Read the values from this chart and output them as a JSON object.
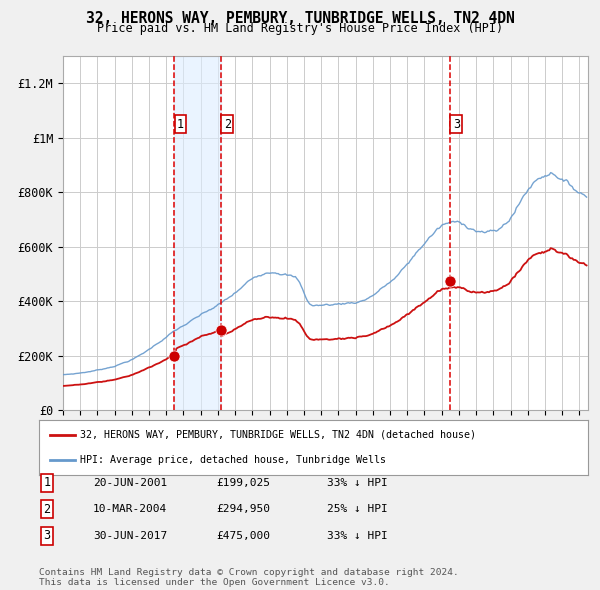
{
  "title": "32, HERONS WAY, PEMBURY, TUNBRIDGE WELLS, TN2 4DN",
  "subtitle": "Price paid vs. HM Land Registry's House Price Index (HPI)",
  "xlim_start": 1995.0,
  "xlim_end": 2025.5,
  "ylim_bottom": 0,
  "ylim_top": 1300000,
  "yticks": [
    0,
    200000,
    400000,
    600000,
    800000,
    1000000,
    1200000
  ],
  "ytick_labels": [
    "£0",
    "£200K",
    "£400K",
    "£600K",
    "£800K",
    "£1M",
    "£1.2M"
  ],
  "purchase_dates": [
    2001.47,
    2004.19,
    2017.49
  ],
  "purchase_prices": [
    199025,
    294950,
    475000
  ],
  "purchase_labels": [
    "1",
    "2",
    "3"
  ],
  "vline_color": "#dd0000",
  "shade_color": "#ddeeff",
  "shade_alpha": 0.6,
  "red_line_color": "#cc1111",
  "blue_line_color": "#6699cc",
  "dot_color": "#cc0000",
  "dot_size": 8,
  "legend_label_red": "32, HERONS WAY, PEMBURY, TUNBRIDGE WELLS, TN2 4DN (detached house)",
  "legend_label_blue": "HPI: Average price, detached house, Tunbridge Wells",
  "table_rows": [
    [
      "1",
      "20-JUN-2001",
      "£199,025",
      "33% ↓ HPI"
    ],
    [
      "2",
      "10-MAR-2004",
      "£294,950",
      "25% ↓ HPI"
    ],
    [
      "3",
      "30-JUN-2017",
      "£475,000",
      "33% ↓ HPI"
    ]
  ],
  "footer_text": "Contains HM Land Registry data © Crown copyright and database right 2024.\nThis data is licensed under the Open Government Licence v3.0.",
  "bg_color": "#f0f0f0",
  "plot_bg_color": "#ffffff",
  "grid_color": "#cccccc"
}
